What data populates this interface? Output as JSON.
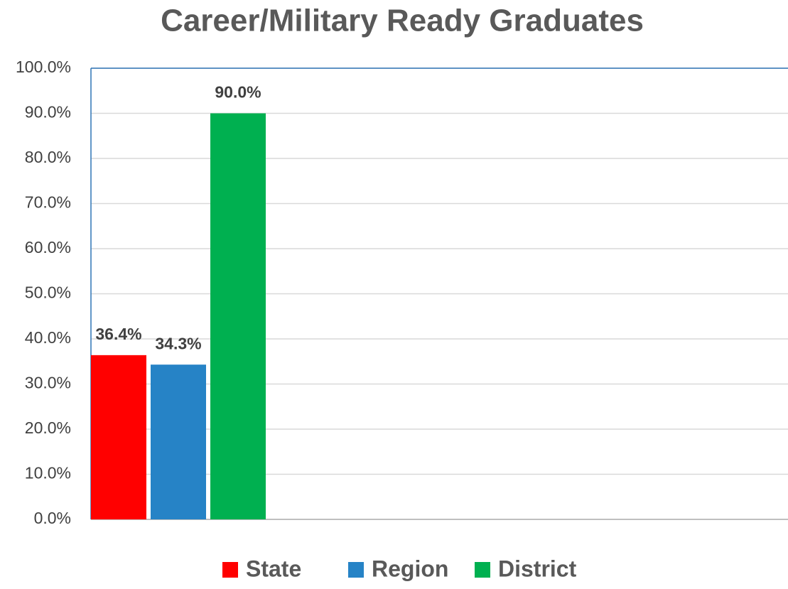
{
  "chart_data": {
    "type": "bar",
    "title": "Career/Military Ready Graduates",
    "categories": [
      null
    ],
    "series": [
      {
        "name": "State",
        "color": "#ff0000",
        "values": [
          36.4
        ],
        "value_labels": [
          "36.4%"
        ]
      },
      {
        "name": "Region",
        "color": "#2683c6",
        "values": [
          34.3
        ],
        "value_labels": [
          "34.3%"
        ]
      },
      {
        "name": "District",
        "color": "#00b050",
        "values": [
          90.0
        ],
        "value_labels": [
          "90.0%"
        ]
      }
    ],
    "ylim": [
      0,
      100
    ],
    "yticks": [
      {
        "value": 0,
        "label": "0.0%"
      },
      {
        "value": 10,
        "label": "10.0%"
      },
      {
        "value": 20,
        "label": "20.0%"
      },
      {
        "value": 30,
        "label": "30.0%"
      },
      {
        "value": 40,
        "label": "40.0%"
      },
      {
        "value": 50,
        "label": "50.0%"
      },
      {
        "value": 60,
        "label": "60.0%"
      },
      {
        "value": 70,
        "label": "70.0%"
      },
      {
        "value": 80,
        "label": "80.0%"
      },
      {
        "value": 90,
        "label": "90.0%"
      },
      {
        "value": 100,
        "label": "100.0%"
      }
    ],
    "grid": true,
    "legend": "bottom"
  }
}
